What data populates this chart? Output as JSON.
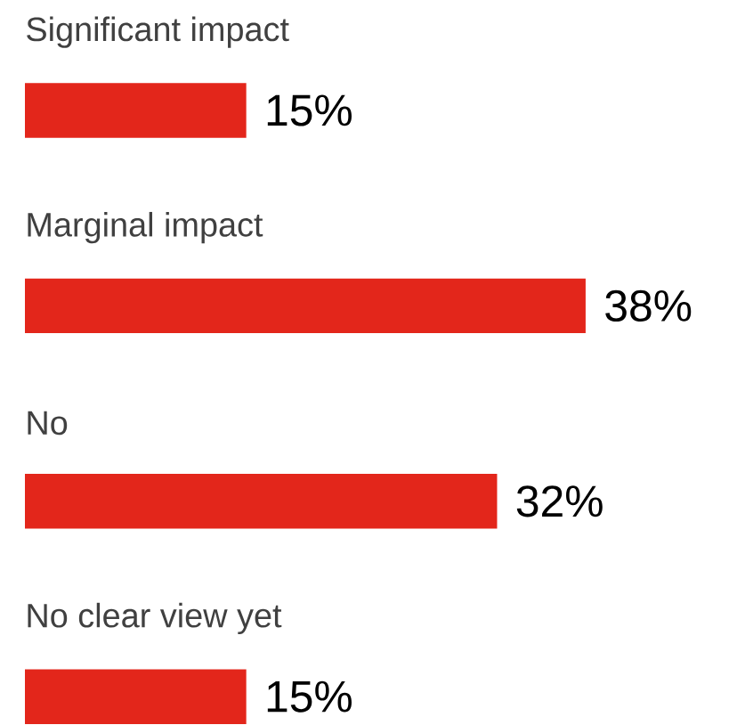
{
  "chart_data": {
    "type": "bar",
    "orientation": "horizontal",
    "categories": [
      "Significant impact",
      "Marginal impact",
      "No",
      "No clear view yet"
    ],
    "values": [
      15,
      38,
      32,
      15
    ],
    "color": "#e3261b",
    "value_labels": [
      "15%",
      "38%",
      "32%",
      "15%"
    ]
  }
}
